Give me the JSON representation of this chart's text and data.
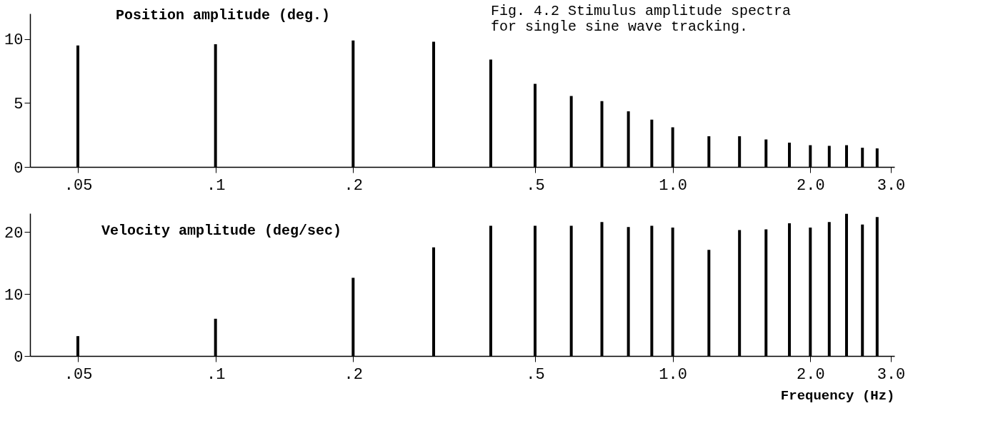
{
  "chart_data": [
    {
      "type": "bar",
      "ylabel": "Position amplitude (deg.)",
      "annotations": [
        "Fig. 4.2  Stimulus amplitude spectra\nfor single sine wave tracking."
      ],
      "x": [
        0.05,
        0.1,
        0.2,
        0.3,
        0.4,
        0.5,
        0.6,
        0.7,
        0.8,
        0.9,
        1.0,
        1.2,
        1.4,
        1.6,
        1.8,
        2.0,
        2.2,
        2.4,
        2.6,
        2.8
      ],
      "values": [
        9.5,
        9.6,
        9.9,
        9.8,
        8.4,
        6.5,
        5.55,
        5.15,
        4.35,
        3.7,
        3.1,
        2.4,
        2.4,
        2.15,
        1.9,
        1.7,
        1.65,
        1.7,
        1.5,
        1.45
      ],
      "color": "#000000",
      "log": "x",
      "xlim": [
        0.04,
        3.0
      ],
      "xticks": [
        {
          "value": 0.05,
          "label": ".05"
        },
        {
          "value": 0.1,
          "label": ".1"
        },
        {
          "value": 0.2,
          "label": ".2"
        },
        {
          "value": 0.5,
          "label": ".5"
        },
        {
          "value": 1.0,
          "label": "1.0"
        },
        {
          "value": 2.0,
          "label": "2.0"
        },
        {
          "value": 3.0,
          "label": "3.0"
        }
      ],
      "ylim": [
        0,
        12
      ],
      "yticks": [
        0,
        5,
        10
      ],
      "grid": false
    },
    {
      "type": "bar",
      "ylabel": "Velocity amplitude (deg/sec)",
      "xlabel": "Frequency (Hz)",
      "x": [
        0.05,
        0.1,
        0.2,
        0.3,
        0.4,
        0.5,
        0.6,
        0.7,
        0.8,
        0.9,
        1.0,
        1.2,
        1.4,
        1.6,
        1.8,
        2.0,
        2.2,
        2.4,
        2.6,
        2.8
      ],
      "values": [
        3.2,
        6.0,
        12.6,
        17.5,
        21.0,
        21.0,
        21.0,
        21.6,
        20.8,
        21.0,
        20.7,
        17.1,
        20.3,
        20.4,
        21.4,
        20.7,
        21.6,
        22.9,
        21.2,
        22.4
      ],
      "color": "#000000",
      "log": "x",
      "xlim": [
        0.04,
        3.0
      ],
      "xticks": [
        {
          "value": 0.05,
          "label": ".05"
        },
        {
          "value": 0.1,
          "label": ".1"
        },
        {
          "value": 0.2,
          "label": ".2"
        },
        {
          "value": 0.5,
          "label": ".5"
        },
        {
          "value": 1.0,
          "label": "1.0"
        },
        {
          "value": 2.0,
          "label": "2.0"
        },
        {
          "value": 3.0,
          "label": "3.0"
        }
      ],
      "ylim": [
        0,
        23
      ],
      "yticks": [
        0,
        10,
        20
      ],
      "grid": false
    }
  ]
}
